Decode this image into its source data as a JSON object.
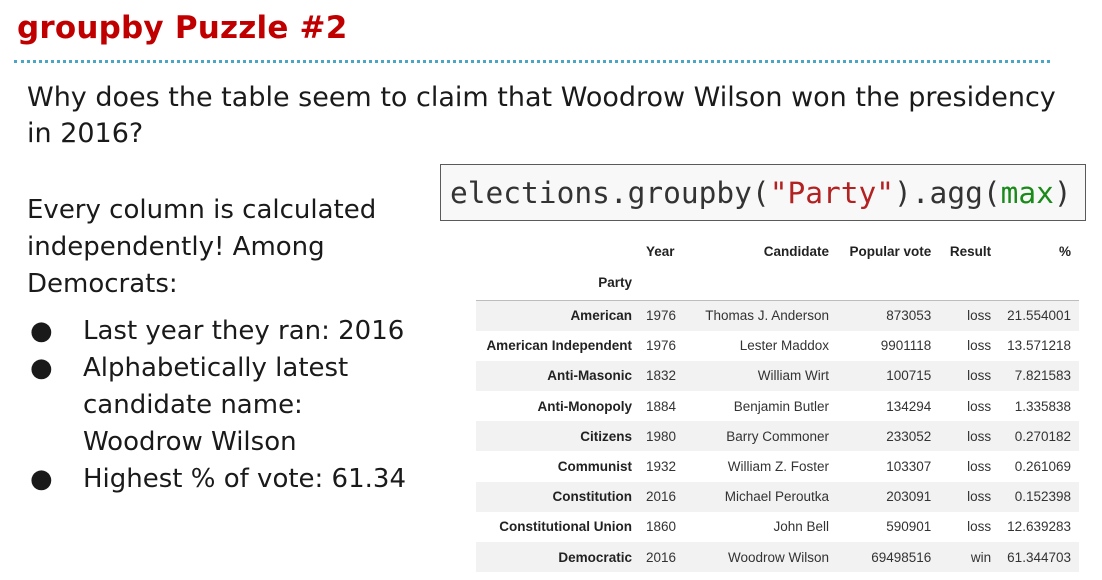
{
  "slide": {
    "title": "groupby Puzzle #2",
    "question": "Why does the table seem to claim that Woodrow Wilson won the presidency in 2016?",
    "explanation": "Every column is calculated independently! Among Democrats:",
    "bullets": [
      "Last year they ran: 2016",
      "Alphabetically latest candidate name: Woodrow Wilson",
      "Highest % of vote: 61.34"
    ],
    "bullet_glyph": "●"
  },
  "code": {
    "prefix": "elections.groupby(",
    "arg": "\"Party\"",
    "middle": ").agg(",
    "fn": "max",
    "suffix": ")"
  },
  "table": {
    "columns": [
      "Year",
      "Candidate",
      "Popular vote",
      "Result",
      "%"
    ],
    "index_name": "Party",
    "rows": [
      {
        "party": "American",
        "year": "1976",
        "candidate": "Thomas J. Anderson",
        "popular_vote": "873053",
        "result": "loss",
        "pct": "21.554001"
      },
      {
        "party": "American Independent",
        "year": "1976",
        "candidate": "Lester Maddox",
        "popular_vote": "9901118",
        "result": "loss",
        "pct": "13.571218"
      },
      {
        "party": "Anti-Masonic",
        "year": "1832",
        "candidate": "William Wirt",
        "popular_vote": "100715",
        "result": "loss",
        "pct": "7.821583"
      },
      {
        "party": "Anti-Monopoly",
        "year": "1884",
        "candidate": "Benjamin Butler",
        "popular_vote": "134294",
        "result": "loss",
        "pct": "1.335838"
      },
      {
        "party": "Citizens",
        "year": "1980",
        "candidate": "Barry Commoner",
        "popular_vote": "233052",
        "result": "loss",
        "pct": "0.270182"
      },
      {
        "party": "Communist",
        "year": "1932",
        "candidate": "William Z. Foster",
        "popular_vote": "103307",
        "result": "loss",
        "pct": "0.261069"
      },
      {
        "party": "Constitution",
        "year": "2016",
        "candidate": "Michael Peroutka",
        "popular_vote": "203091",
        "result": "loss",
        "pct": "0.152398"
      },
      {
        "party": "Constitutional Union",
        "year": "1860",
        "candidate": "John Bell",
        "popular_vote": "590901",
        "result": "loss",
        "pct": "12.639283"
      },
      {
        "party": "Democratic",
        "year": "2016",
        "candidate": "Woodrow Wilson",
        "popular_vote": "69498516",
        "result": "win",
        "pct": "61.344703"
      }
    ]
  }
}
